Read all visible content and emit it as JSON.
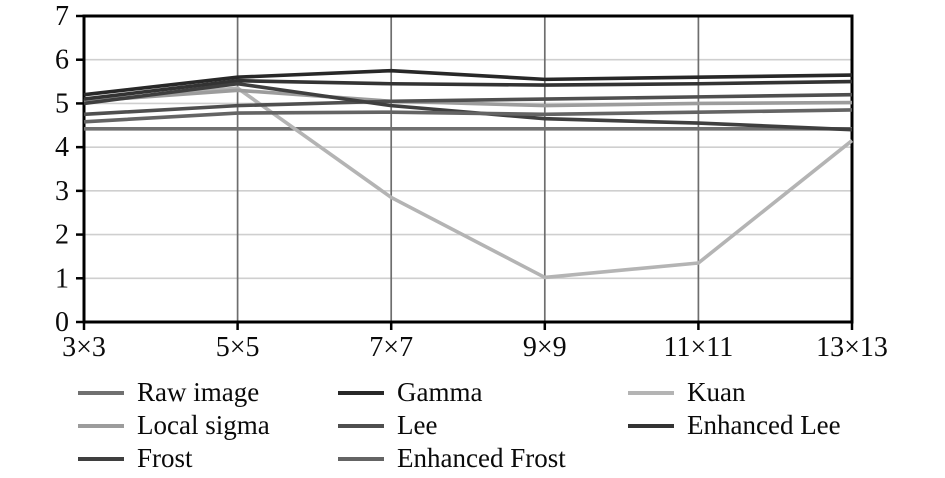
{
  "chart_data": {
    "type": "line",
    "title": "",
    "xlabel": "",
    "ylabel": "",
    "categories": [
      "3×3",
      "5×5",
      "7×7",
      "9×9",
      "11×11",
      "13×13"
    ],
    "ylim": [
      0,
      7
    ],
    "yticks": [
      0,
      1,
      2,
      3,
      4,
      5,
      6,
      7
    ],
    "grid": {
      "horizontal": true,
      "vertical": true
    },
    "legend_position": "bottom",
    "colors": {
      "h_gridline": "#cfcfcf",
      "v_gridline": "#6e6e6e",
      "border": "#000000",
      "tick": "#000000",
      "text": "#0a0a0a"
    },
    "series": [
      {
        "name": "Raw image",
        "color": "#707070",
        "values": [
          4.42,
          4.42,
          4.42,
          4.42,
          4.42,
          4.42
        ]
      },
      {
        "name": "Gamma",
        "color": "#282828",
        "values": [
          5.2,
          5.6,
          5.75,
          5.55,
          5.6,
          5.65
        ]
      },
      {
        "name": "Kuan",
        "color": "#b4b4b4",
        "values": [
          5.05,
          5.35,
          2.85,
          1.02,
          1.35,
          4.15
        ]
      },
      {
        "name": "Local sigma",
        "color": "#9c9c9c",
        "values": [
          5.05,
          5.3,
          5.05,
          4.95,
          5.0,
          5.02
        ]
      },
      {
        "name": "Lee",
        "color": "#4f4f4f",
        "values": [
          4.75,
          4.95,
          5.05,
          5.1,
          5.15,
          5.2
        ]
      },
      {
        "name": "Enhanced Lee",
        "color": "#333333",
        "values": [
          5.1,
          5.52,
          5.45,
          5.42,
          5.45,
          5.5
        ]
      },
      {
        "name": "Frost",
        "color": "#3f3f3f",
        "values": [
          5.0,
          5.45,
          4.95,
          4.65,
          4.55,
          4.4
        ]
      },
      {
        "name": "Enhanced Frost",
        "color": "#646464",
        "values": [
          4.58,
          4.78,
          4.8,
          4.75,
          4.8,
          4.85
        ]
      }
    ]
  }
}
